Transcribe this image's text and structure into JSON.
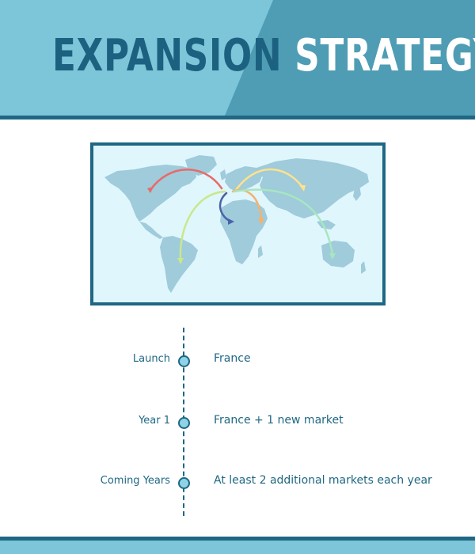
{
  "header": {
    "title_part1": "EXPANSION",
    "title_part2": "STRATEGY"
  },
  "map": {
    "icon": "world-map-icon",
    "route_colors": [
      "#e86a6a",
      "#ffe28a",
      "#f5b26b",
      "#c9e88a",
      "#a8e6c0",
      "#4a62a8"
    ]
  },
  "timeline": {
    "items": [
      {
        "label": "Launch",
        "text": "France"
      },
      {
        "label": "Year 1",
        "text": "France + 1 new market"
      },
      {
        "label": "Coming Years",
        "text": "At least 2 additional markets each year"
      }
    ]
  },
  "colors": {
    "header_light": "#7dc6d9",
    "header_dark": "#4f9db4",
    "accent_dark": "#1f6784",
    "map_background": "#dff6fd",
    "land": "#9fcbdb"
  }
}
